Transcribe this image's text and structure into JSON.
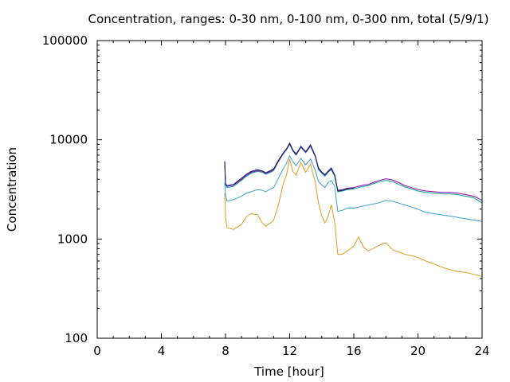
{
  "chart_data": {
    "type": "line",
    "title": "Concentration, ranges: 0-30 nm, 0-100 nm, 0-300 nm, total (5/9/1)",
    "xlabel": "Time [hour]",
    "ylabel": "Concentration",
    "xlim": [
      0,
      24
    ],
    "ylim": [
      100,
      100000
    ],
    "yscale": "log",
    "xticks": [
      0,
      4,
      8,
      12,
      16,
      20,
      24
    ],
    "xtick_labels": [
      "0",
      "4",
      "8",
      "12",
      "16",
      "20",
      "24"
    ],
    "yticks": [
      100,
      1000,
      10000,
      100000
    ],
    "ytick_labels": [
      "100",
      "1000",
      "10000",
      "100000"
    ],
    "grid": false,
    "legend": "none",
    "series": [
      {
        "color": "#e09c1f",
        "x": [
          7.95,
          8.0,
          8.1,
          8.5,
          9.0,
          9.3,
          9.6,
          10.0,
          10.3,
          10.5,
          10.8,
          11.0,
          11.3,
          11.6,
          11.8,
          12.0,
          12.2,
          12.4,
          12.7,
          13.0,
          13.3,
          13.6,
          13.8,
          14.0,
          14.2,
          14.4,
          14.6,
          14.8,
          15.0,
          15.3,
          15.6,
          16.0,
          16.3,
          16.6,
          16.9,
          17.2,
          17.5,
          18.0,
          18.4,
          18.8,
          19.2,
          19.6,
          20.0,
          20.5,
          21.0,
          21.5,
          22.0,
          22.5,
          23.0,
          23.5,
          24.0
        ],
        "values": [
          2900,
          1650,
          1300,
          1250,
          1400,
          1680,
          1800,
          1750,
          1450,
          1350,
          1450,
          1550,
          2200,
          3600,
          4400,
          6400,
          4800,
          4400,
          5900,
          4700,
          5700,
          3700,
          2300,
          1700,
          1450,
          1700,
          2200,
          1500,
          700,
          700,
          760,
          850,
          1050,
          830,
          760,
          800,
          850,
          920,
          780,
          740,
          700,
          680,
          650,
          600,
          560,
          520,
          490,
          470,
          460,
          440,
          420
        ]
      },
      {
        "color": "#3aa0d0",
        "x": [
          7.95,
          8.0,
          8.1,
          8.5,
          9.0,
          9.3,
          9.6,
          10.0,
          10.3,
          10.5,
          10.8,
          11.0,
          11.3,
          11.6,
          11.8,
          12.0,
          12.2,
          12.4,
          12.7,
          13.0,
          13.3,
          13.6,
          13.8,
          14.0,
          14.2,
          14.4,
          14.6,
          14.8,
          15.0,
          15.3,
          15.6,
          16.0,
          16.3,
          16.6,
          16.9,
          17.2,
          17.5,
          18.0,
          18.4,
          18.8,
          19.2,
          19.6,
          20.0,
          20.5,
          21.0,
          21.5,
          22.0,
          22.5,
          23.0,
          23.5,
          24.0
        ],
        "values": [
          3700,
          2800,
          2400,
          2500,
          2700,
          2900,
          3000,
          3150,
          3100,
          3000,
          3200,
          3300,
          4100,
          5100,
          5800,
          6900,
          6000,
          5500,
          6500,
          5600,
          6400,
          4900,
          3800,
          3500,
          3300,
          3700,
          3900,
          3400,
          1900,
          1950,
          2050,
          2050,
          2100,
          2150,
          2200,
          2250,
          2300,
          2450,
          2400,
          2300,
          2200,
          2100,
          2000,
          1850,
          1800,
          1750,
          1700,
          1650,
          1600,
          1550,
          1500
        ]
      },
      {
        "color": "#00a08a",
        "x": [
          7.95,
          8.0,
          8.1,
          8.5,
          9.0,
          9.3,
          9.6,
          10.0,
          10.3,
          10.5,
          10.8,
          11.0,
          11.3,
          11.6,
          11.8,
          12.0,
          12.2,
          12.4,
          12.7,
          13.0,
          13.3,
          13.6,
          13.8,
          14.0,
          14.2,
          14.4,
          14.6,
          14.8,
          15.0,
          15.3,
          15.6,
          16.0,
          16.3,
          16.6,
          16.9,
          17.2,
          17.5,
          18.0,
          18.4,
          18.8,
          19.2,
          19.6,
          20.0,
          20.5,
          21.0,
          21.5,
          22.0,
          22.5,
          23.0,
          23.5,
          24.0
        ],
        "values": [
          5900,
          3500,
          3300,
          3400,
          3900,
          4300,
          4600,
          4800,
          4700,
          4500,
          4700,
          4900,
          6000,
          7200,
          7900,
          9000,
          7700,
          7000,
          8400,
          7400,
          8600,
          6700,
          5000,
          4600,
          4300,
          4700,
          5000,
          4300,
          3000,
          3050,
          3150,
          3200,
          3300,
          3400,
          3450,
          3600,
          3750,
          3900,
          3800,
          3550,
          3350,
          3200,
          3050,
          2950,
          2900,
          2850,
          2850,
          2800,
          2700,
          2600,
          2300
        ]
      },
      {
        "color": "#9400b0",
        "x": [
          7.95,
          8.0,
          8.1,
          8.5,
          9.0,
          9.3,
          9.6,
          10.0,
          10.3,
          10.5,
          10.8,
          11.0,
          11.3,
          11.6,
          11.8,
          12.0,
          12.2,
          12.4,
          12.7,
          13.0,
          13.3,
          13.6,
          13.8,
          14.0,
          14.2,
          14.4,
          14.6,
          14.8,
          15.0,
          15.3,
          15.6,
          16.0,
          16.3,
          16.6,
          16.9,
          17.2,
          17.5,
          18.0,
          18.4,
          18.8,
          19.2,
          19.6,
          20.0,
          20.5,
          21.0,
          21.5,
          22.0,
          22.5,
          23.0,
          23.5,
          24.0
        ],
        "values": [
          6000,
          3600,
          3400,
          3500,
          4000,
          4400,
          4700,
          4900,
          4800,
          4600,
          4800,
          5000,
          6100,
          7300,
          8000,
          9100,
          7800,
          7100,
          8500,
          7500,
          8700,
          6800,
          5100,
          4700,
          4400,
          4800,
          5100,
          4400,
          3100,
          3150,
          3250,
          3300,
          3400,
          3500,
          3550,
          3700,
          3850,
          4050,
          3950,
          3700,
          3450,
          3300,
          3150,
          3050,
          3000,
          2950,
          2950,
          2900,
          2800,
          2700,
          2450
        ]
      },
      {
        "color": "#0b2a63",
        "x": [
          7.95,
          8.0,
          8.1,
          8.5,
          9.0,
          9.3,
          9.6,
          10.0,
          10.3,
          10.5,
          10.8,
          11.0,
          11.3,
          11.6,
          11.8,
          12.0,
          12.2,
          12.4,
          12.7,
          13.0,
          13.3,
          13.6,
          13.8,
          14.0,
          14.2,
          14.4,
          14.6,
          14.8,
          15.0,
          15.3,
          15.6,
          16.0
        ],
        "values": [
          6100,
          3600,
          3450,
          3550,
          4100,
          4500,
          4800,
          5000,
          4850,
          4650,
          4900,
          5100,
          6200,
          7400,
          8100,
          9300,
          7900,
          7200,
          8600,
          7600,
          8900,
          6900,
          5200,
          4750,
          4450,
          4850,
          5200,
          4450,
          3050,
          3100,
          3200,
          3250
        ]
      }
    ]
  }
}
